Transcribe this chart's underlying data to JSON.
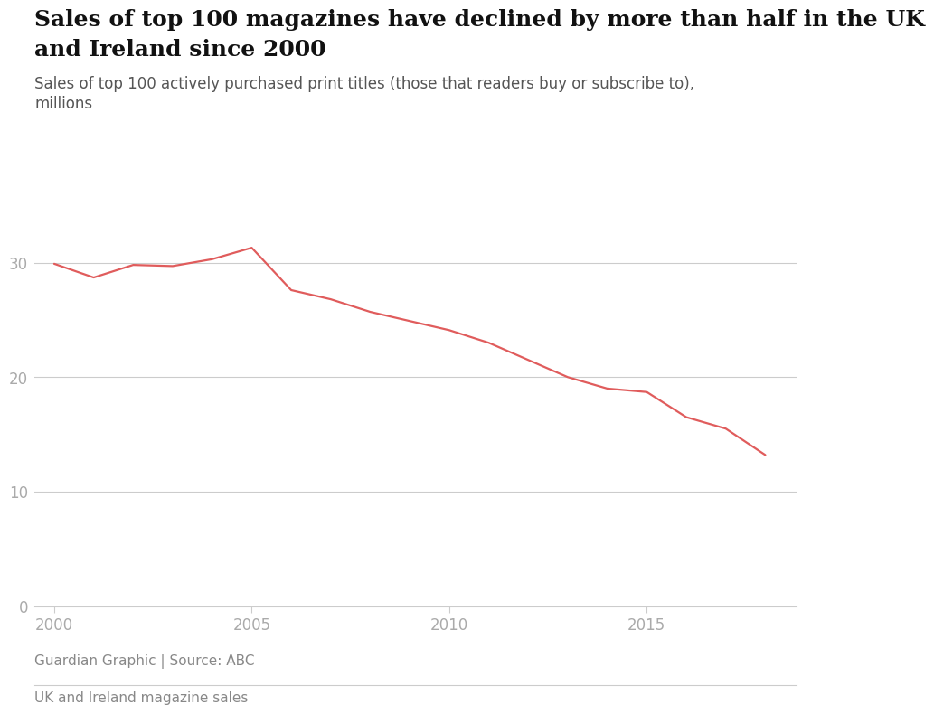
{
  "title_line1": "Sales of top 100 magazines have declined by more than half in the UK",
  "title_line2": "and Ireland since 2000",
  "subtitle_line1": "Sales of top 100 actively purchased print titles (those that readers buy or subscribe to),",
  "subtitle_line2": "millions",
  "footer_source": "Guardian Graphic | Source: ABC",
  "footer_label": "UK and Ireland magazine sales",
  "x": [
    2000,
    2001,
    2002,
    2003,
    2004,
    2005,
    2006,
    2007,
    2008,
    2009,
    2010,
    2011,
    2012,
    2013,
    2014,
    2015,
    2016,
    2017,
    2018
  ],
  "y": [
    29.9,
    28.7,
    29.8,
    29.7,
    30.3,
    31.3,
    27.6,
    26.8,
    25.7,
    24.9,
    24.1,
    23.0,
    21.5,
    20.0,
    19.0,
    18.7,
    16.5,
    15.5,
    13.2
  ],
  "line_color": "#e05c5c",
  "grid_color": "#cccccc",
  "background_color": "#ffffff",
  "title_fontsize": 18,
  "subtitle_fontsize": 12,
  "tick_label_color": "#aaaaaa",
  "tick_fontsize": 12,
  "footer_fontsize": 11,
  "ylim": [
    0,
    35
  ],
  "yticks": [
    0,
    10,
    20,
    30
  ],
  "xticks": [
    2000,
    2005,
    2010,
    2015
  ],
  "xlim": [
    1999.5,
    2018.8
  ]
}
